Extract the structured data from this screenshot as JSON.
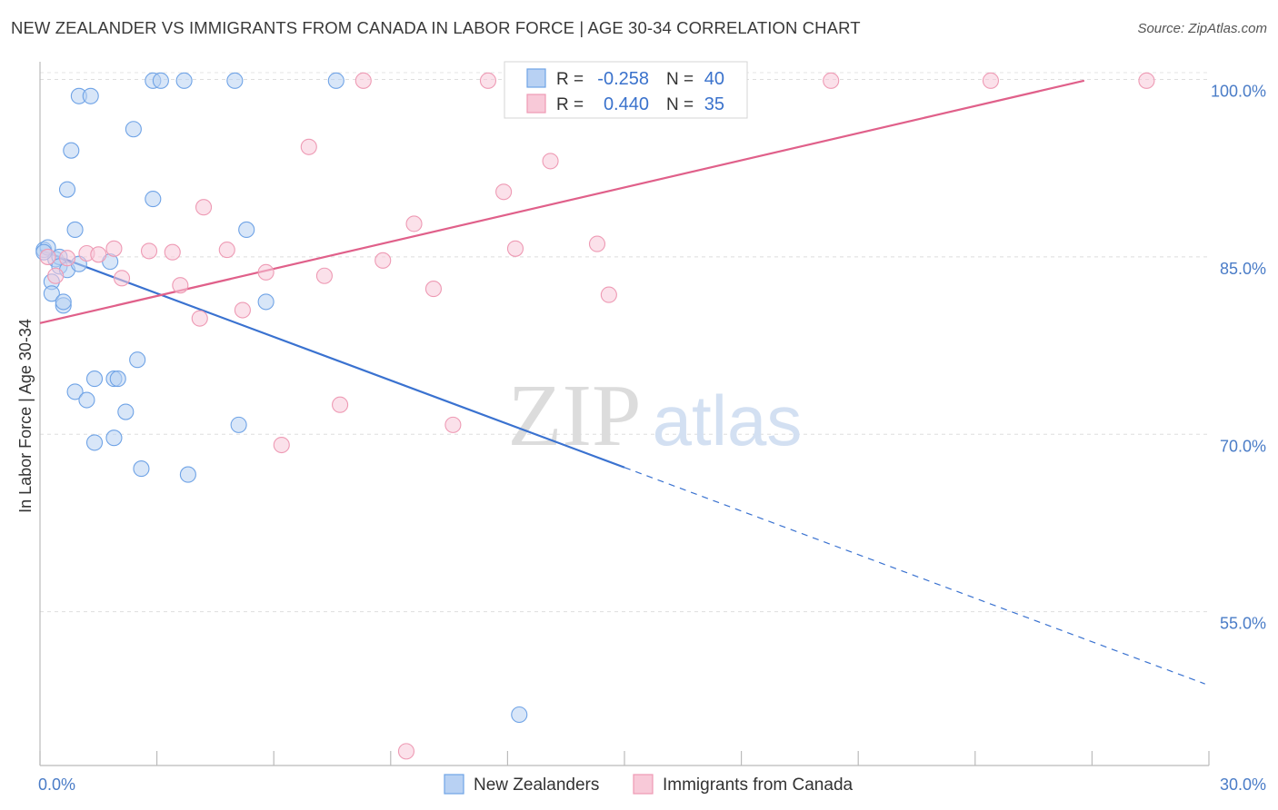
{
  "header": {
    "title": "NEW ZEALANDER VS IMMIGRANTS FROM CANADA IN LABOR FORCE | AGE 30-34 CORRELATION CHART",
    "source": "Source: ZipAtlas.com"
  },
  "watermark": {
    "zip": "ZIP",
    "atlas": "atlas"
  },
  "chart_data": {
    "type": "scatter",
    "ylabel": "In Labor Force | Age 30-34",
    "xlabel": "",
    "xlim": [
      0,
      30
    ],
    "ylim": [
      42,
      101.5
    ],
    "x_tick_labels": [
      "0.0%",
      "30.0%"
    ],
    "y_ticks": [
      55,
      70,
      85,
      100
    ],
    "y_tick_labels": [
      "55.0%",
      "70.0%",
      "85.0%",
      "100.0%"
    ],
    "grid": true,
    "legend_position": "top-center",
    "stats_legend": [
      {
        "r_label": "R =",
        "r_value": "-0.258",
        "n_label": "N =",
        "n_value": "40"
      },
      {
        "r_label": "R =",
        "r_value": "0.440",
        "n_label": "N =",
        "n_value": "35"
      }
    ],
    "series": [
      {
        "name": "New Zealanders",
        "color": "#6fa3e6",
        "fill": "#b8d1f3",
        "line_color": "#3a72d0",
        "trend": {
          "x0": 0.0,
          "y0": 85.6,
          "x1": 15.0,
          "y1": 67.2,
          "dash_x1": 29.9,
          "dash_y1": 48.9
        },
        "points": [
          [
            0.1,
            85.6
          ],
          [
            0.2,
            85.8
          ],
          [
            0.3,
            82.9
          ],
          [
            0.3,
            81.9
          ],
          [
            0.4,
            84.8
          ],
          [
            0.5,
            85.0
          ],
          [
            0.5,
            84.2
          ],
          [
            0.6,
            80.9
          ],
          [
            0.6,
            81.2
          ],
          [
            0.7,
            83.9
          ],
          [
            0.7,
            90.7
          ],
          [
            0.8,
            94.0
          ],
          [
            0.9,
            87.3
          ],
          [
            0.9,
            73.6
          ],
          [
            1.0,
            98.6
          ],
          [
            1.0,
            84.4
          ],
          [
            1.2,
            72.9
          ],
          [
            1.3,
            98.6
          ],
          [
            1.4,
            69.3
          ],
          [
            1.4,
            74.7
          ],
          [
            1.9,
            69.7
          ],
          [
            1.9,
            74.7
          ],
          [
            2.0,
            74.7
          ],
          [
            2.2,
            71.9
          ],
          [
            2.4,
            95.8
          ],
          [
            2.5,
            76.3
          ],
          [
            2.6,
            67.1
          ],
          [
            2.9,
            99.9
          ],
          [
            2.9,
            89.9
          ],
          [
            3.1,
            99.9
          ],
          [
            3.7,
            99.9
          ],
          [
            3.8,
            66.6
          ],
          [
            5.0,
            99.9
          ],
          [
            5.1,
            70.8
          ],
          [
            5.3,
            87.3
          ],
          [
            5.8,
            81.2
          ],
          [
            7.6,
            99.9
          ],
          [
            12.3,
            46.3
          ],
          [
            1.8,
            84.6
          ],
          [
            0.1,
            85.4
          ]
        ]
      },
      {
        "name": "Immigrants from Canada",
        "color": "#ee9ab4",
        "fill": "#f8c9d8",
        "line_color": "#e0608a",
        "trend": {
          "x0": 0.0,
          "y0": 79.4,
          "x1": 26.8,
          "y1": 99.9
        },
        "points": [
          [
            0.2,
            85.0
          ],
          [
            0.4,
            83.4
          ],
          [
            0.7,
            84.9
          ],
          [
            1.2,
            85.3
          ],
          [
            1.9,
            85.7
          ],
          [
            2.1,
            83.2
          ],
          [
            2.8,
            85.5
          ],
          [
            3.4,
            85.4
          ],
          [
            3.6,
            82.6
          ],
          [
            4.1,
            79.8
          ],
          [
            4.2,
            89.2
          ],
          [
            4.8,
            85.6
          ],
          [
            5.2,
            80.5
          ],
          [
            5.8,
            83.7
          ],
          [
            6.2,
            69.1
          ],
          [
            6.9,
            94.3
          ],
          [
            7.3,
            83.4
          ],
          [
            7.7,
            72.5
          ],
          [
            8.3,
            99.9
          ],
          [
            8.8,
            84.7
          ],
          [
            9.4,
            43.2
          ],
          [
            9.6,
            87.8
          ],
          [
            10.1,
            82.3
          ],
          [
            10.6,
            70.8
          ],
          [
            11.5,
            99.9
          ],
          [
            11.9,
            90.5
          ],
          [
            12.2,
            85.7
          ],
          [
            13.1,
            93.1
          ],
          [
            14.2,
            99.9
          ],
          [
            14.3,
            86.1
          ],
          [
            14.6,
            81.8
          ],
          [
            20.3,
            99.9
          ],
          [
            24.4,
            99.9
          ],
          [
            28.4,
            99.9
          ],
          [
            1.5,
            85.2
          ]
        ]
      }
    ]
  }
}
